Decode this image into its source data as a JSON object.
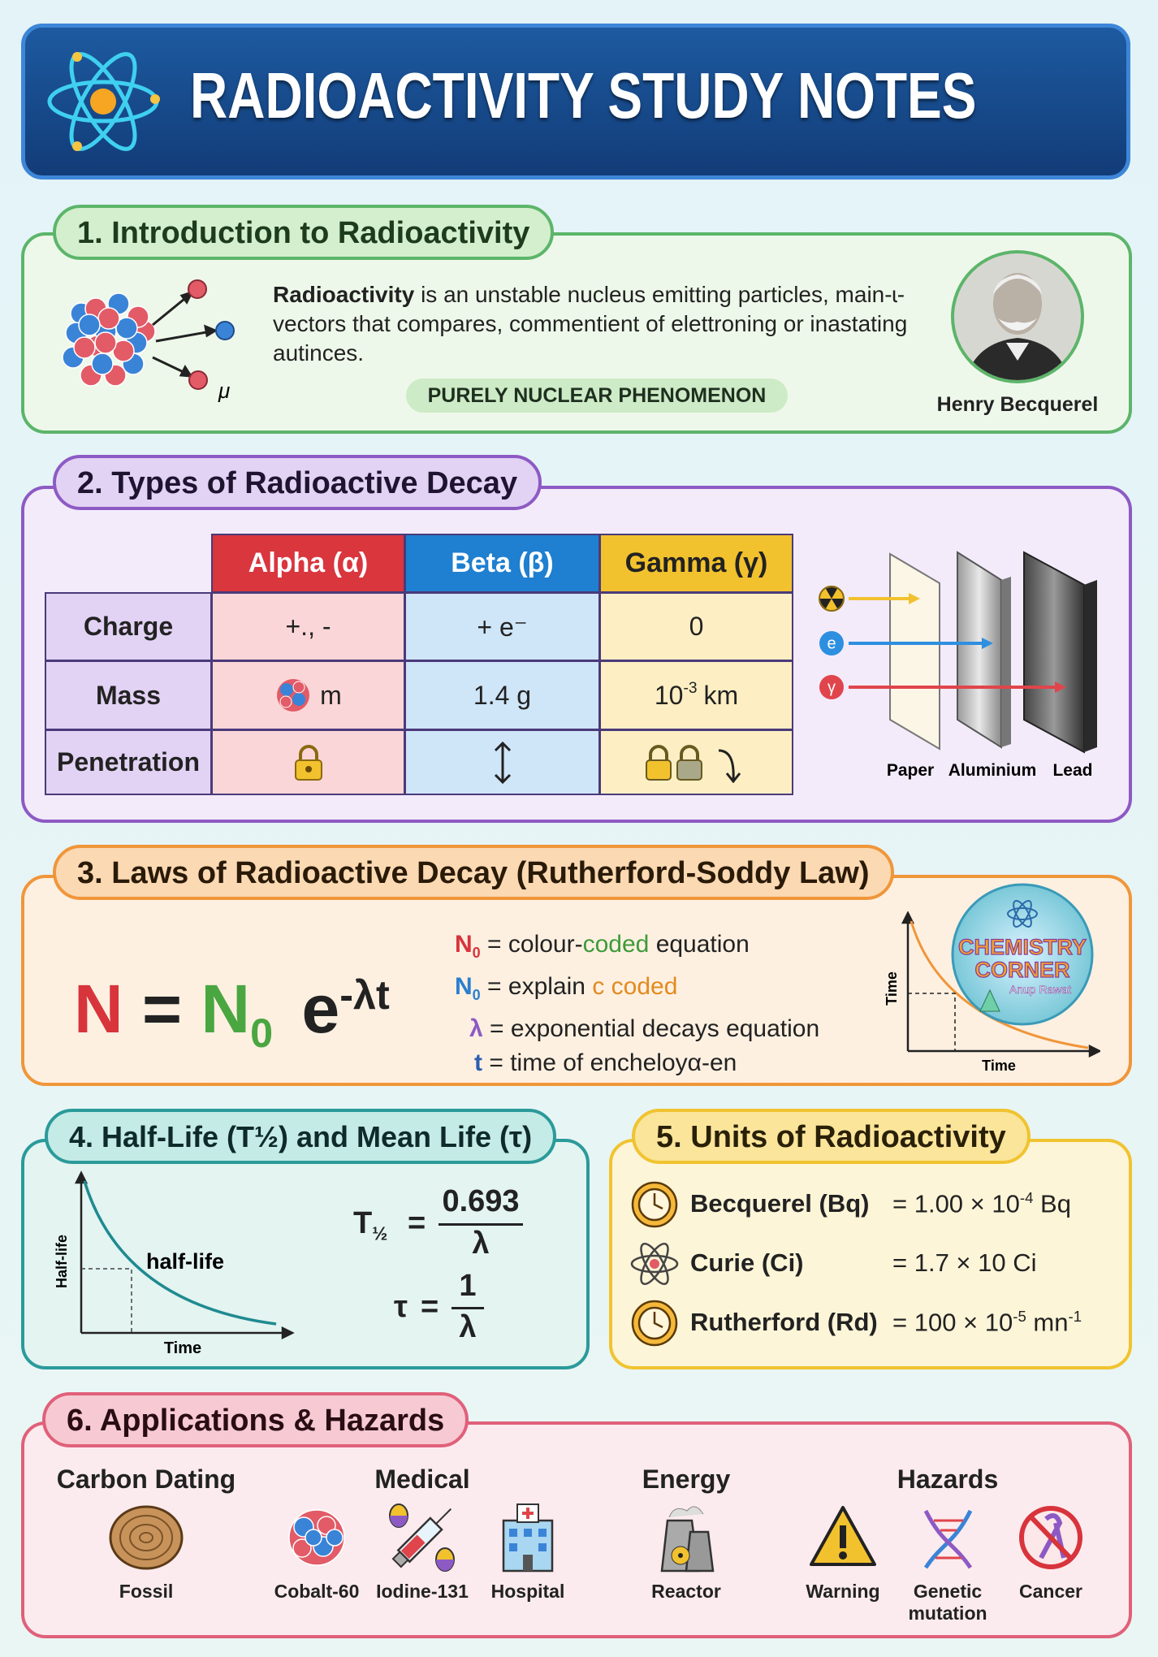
{
  "header": {
    "title": "RADIOACTIVITY STUDY NOTES"
  },
  "intro": {
    "title": "1. Introduction to Radioactivity",
    "lead": "Radioactivity",
    "text": "is an unstable nucleus emitting particles, main-ɩ-vectors that compares, commentient of elettroning or inastating autinces.",
    "particle_label": "μ",
    "badge": "PURELY NUCLEAR PHENOMENON",
    "portrait_caption": "Henry Becquerel"
  },
  "decay": {
    "title": "2. Types of Radioactive Decay",
    "table": {
      "header": [
        "Alpha (α)",
        "Beta (β)",
        "Gamma (γ)"
      ],
      "rows": [
        {
          "label": "Charge",
          "cells": [
            "+., -",
            "+ e⁻",
            "0"
          ]
        },
        {
          "label": "Mass",
          "cells": [
            "m",
            "1.4 g",
            {
              "base": "10",
              "sup": "-3",
              "unit": "km"
            }
          ]
        },
        {
          "label": "Penetration"
        }
      ]
    },
    "shielding": {
      "sources": [
        "e",
        "γ"
      ],
      "materials": [
        "Paper",
        "Aluminium",
        "Lead"
      ]
    }
  },
  "law": {
    "title": "3. Laws of Radioactive Decay (Rutherford-Soddy Law)",
    "equation": {
      "lhs": "N",
      "eq": "=",
      "n0": "N",
      "n0_sub": "0",
      "base": "e",
      "exponent": "-λt"
    },
    "legend": [
      {
        "symbol": "N",
        "sub": "0",
        "text": [
          "= colour-",
          "coded",
          "equation"
        ]
      },
      {
        "symbol": "N",
        "sub": "0",
        "text": [
          "= explain",
          "c coded"
        ]
      },
      {
        "symbol": "λ",
        "text": [
          "= exponential decays equation"
        ]
      },
      {
        "symbol": "t",
        "text": [
          "= time of encheloyα-en"
        ]
      }
    ],
    "graph": {
      "y_label": "Time",
      "x_label": "Time"
    },
    "logo": {
      "line1": "CHEMISTRY",
      "line2": "CORNER",
      "author": "Anup Rawat"
    }
  },
  "half_life": {
    "title": "4. Half-Life (T½) and Mean Life (τ)",
    "graph": {
      "y_label": "Half-life",
      "curve_label": "half-life",
      "x_label": "Time"
    },
    "formulas": [
      {
        "lhs": "T",
        "lhs_sub": "½",
        "eq": "=",
        "numerator": "0.693",
        "denominator": "λ"
      },
      {
        "lhs": "τ",
        "eq": "=",
        "numerator": "1",
        "denominator": "λ"
      }
    ]
  },
  "units": {
    "title": "5. Units of Radioactivity",
    "rows": [
      {
        "name": "Becquerel (Bq)",
        "value": [
          {
            "text": "= 1.00 × 10"
          },
          {
            "sup": "-4"
          },
          {
            "text": "Bq"
          }
        ]
      },
      {
        "name": "Curie (Ci)",
        "value": [
          {
            "text": "= 1.7 × 10"
          },
          {
            "text": "Ci"
          }
        ]
      },
      {
        "name": "Rutherford (Rd)",
        "value": [
          {
            "text": "= 100 × 10"
          },
          {
            "sup": "-5"
          },
          {
            "text": "mn"
          },
          {
            "sup": "-1"
          }
        ]
      }
    ]
  },
  "applications": {
    "title": "6. Applications & Hazards",
    "groups": [
      {
        "name": "Carbon Dating",
        "items": [
          "Fossil"
        ]
      },
      {
        "name": "Medical",
        "items": [
          "Cobalt-60",
          "Iodine-131",
          "Hospital"
        ]
      },
      {
        "name": "Energy",
        "items": [
          "Reactor"
        ]
      },
      {
        "name": "Hazards",
        "items": [
          "Warning",
          "Genetic mutation",
          "Cancer"
        ]
      }
    ]
  }
}
